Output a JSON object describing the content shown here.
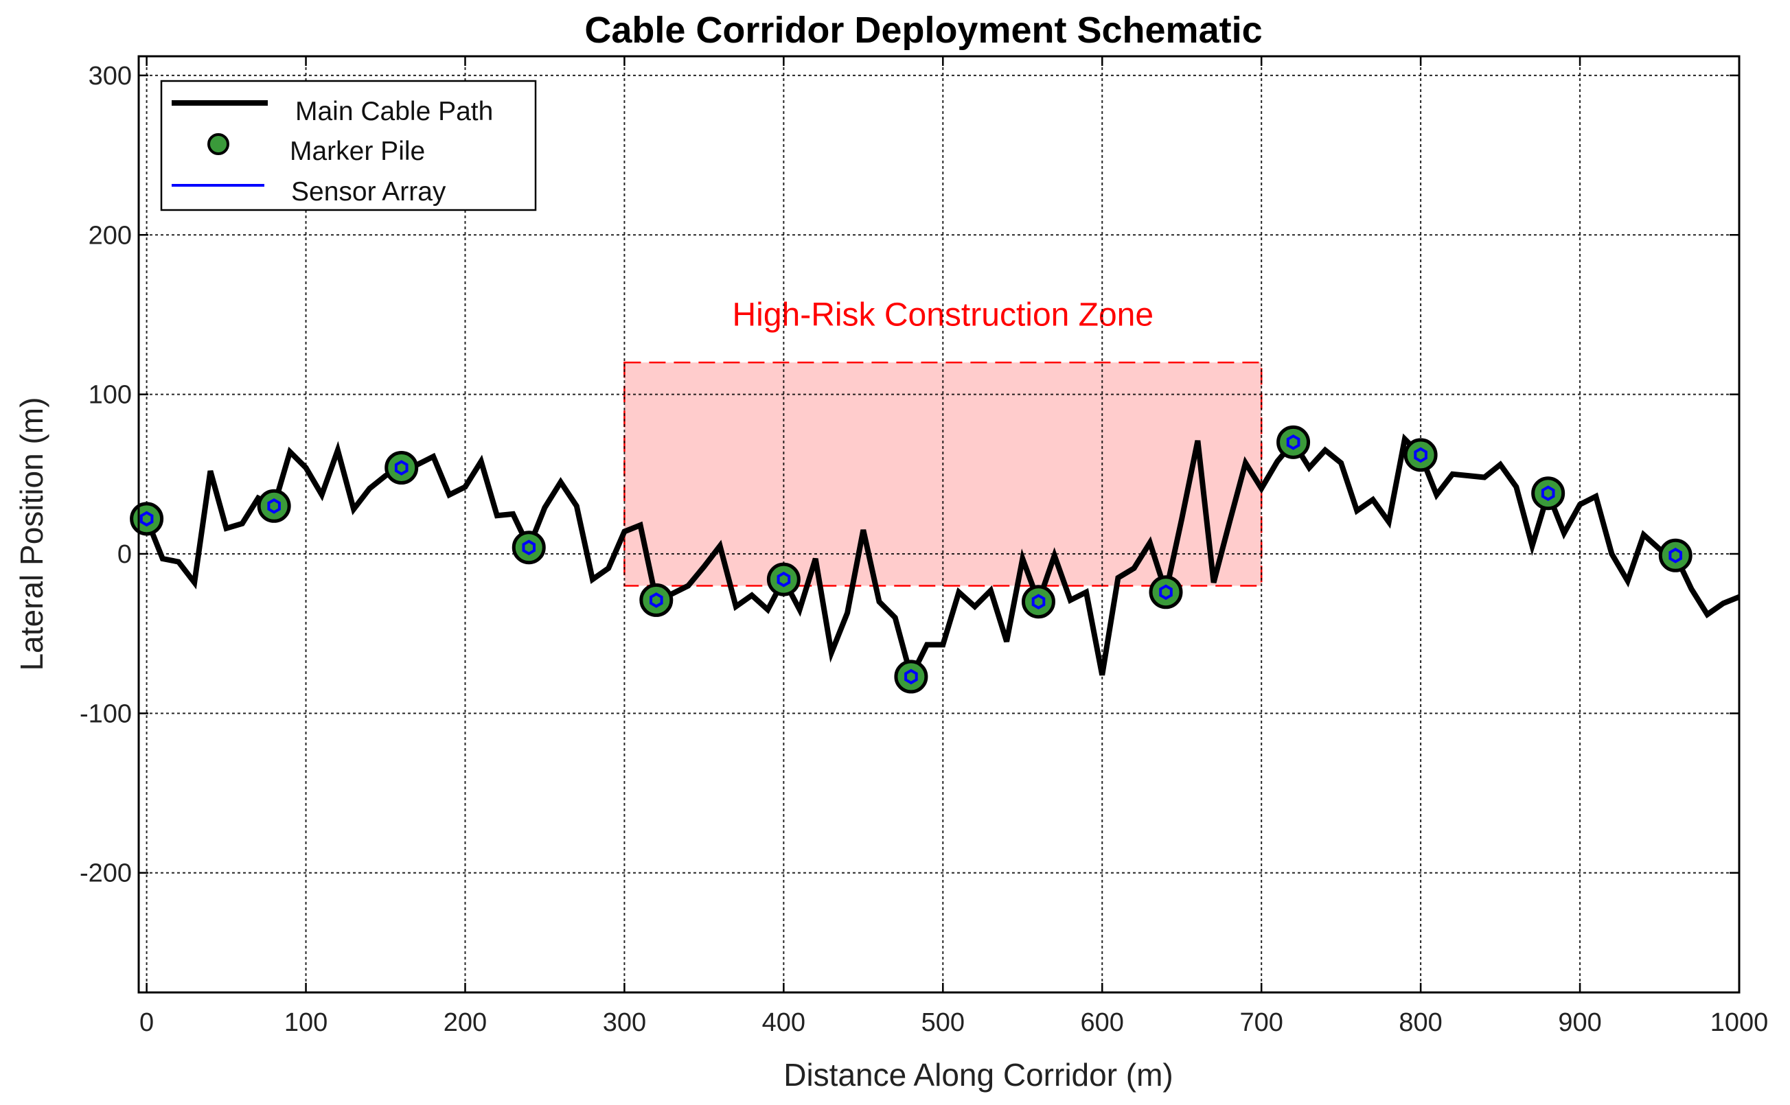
{
  "chart_data": {
    "type": "line",
    "title": "Cable Corridor Deployment Schematic",
    "xlabel": "Distance Along Corridor (m)",
    "ylabel": "Lateral Position (m)",
    "xlim": [
      -5,
      1000
    ],
    "ylim": [
      -275,
      312
    ],
    "xticks": [
      0,
      100,
      200,
      300,
      400,
      500,
      600,
      700,
      800,
      900,
      1000
    ],
    "yticks": [
      -200,
      -100,
      0,
      100,
      200,
      300
    ],
    "grid": true,
    "legend_position": "top-left",
    "colors": {
      "cable": "#000000",
      "marker_fill": "#3a9a3a",
      "marker_edge": "#000000",
      "sensor": "#0000ff",
      "zone_fill": "#ffcccc",
      "zone_edge": "#ff0000",
      "zone_text": "#ff0000"
    },
    "series": [
      {
        "name": "Main Cable Path",
        "x": [
          0,
          10,
          20,
          30,
          40,
          50,
          60,
          70,
          80,
          90,
          100,
          110,
          120,
          130,
          140,
          150,
          160,
          170,
          180,
          190,
          200,
          210,
          220,
          230,
          240,
          250,
          260,
          270,
          280,
          290,
          300,
          310,
          320,
          330,
          340,
          350,
          360,
          370,
          380,
          390,
          400,
          410,
          420,
          430,
          440,
          450,
          460,
          470,
          480,
          490,
          500,
          510,
          520,
          530,
          540,
          550,
          560,
          570,
          580,
          590,
          600,
          610,
          620,
          630,
          640,
          650,
          660,
          670,
          680,
          690,
          700,
          710,
          720,
          730,
          740,
          750,
          760,
          770,
          780,
          790,
          800,
          810,
          820,
          830,
          840,
          850,
          860,
          870,
          880,
          890,
          900,
          910,
          920,
          930,
          940,
          950,
          960,
          970,
          980,
          990,
          1000
        ],
        "y": [
          22,
          -3,
          -5,
          -18,
          52,
          16,
          19,
          35,
          30,
          64,
          54,
          37,
          65,
          28,
          41,
          49,
          54,
          56,
          61,
          37,
          42,
          58,
          24,
          25,
          4,
          29,
          45,
          30,
          -16,
          -9,
          14,
          18,
          -29,
          -25,
          -20,
          -8,
          5,
          -33,
          -26,
          -35,
          -16,
          -35,
          -3,
          -62,
          -37,
          15,
          -30,
          -40,
          -77,
          -57,
          -57,
          -24,
          -33,
          -23,
          -55,
          -3,
          -30,
          -1,
          -29,
          -24,
          -76,
          -15,
          -9,
          7,
          -24,
          22,
          71,
          -18,
          20,
          57,
          41,
          58,
          70,
          54,
          65,
          57,
          27,
          34,
          20,
          72,
          62,
          37,
          50,
          49,
          48,
          56,
          42,
          5,
          38,
          13,
          31,
          36,
          0,
          -17,
          12,
          3,
          -1,
          -22,
          -38,
          -31,
          -27
        ]
      },
      {
        "name": "Marker Pile",
        "x": [
          0,
          80,
          160,
          240,
          320,
          400,
          480,
          560,
          640,
          720,
          800,
          880,
          960
        ],
        "y": [
          22,
          30,
          54,
          4,
          -29,
          -16,
          -77,
          -30,
          -24,
          70,
          62,
          38,
          -1
        ]
      },
      {
        "name": "Sensor Array",
        "x": [
          0,
          80,
          160,
          240,
          320,
          400,
          480,
          560,
          640,
          720,
          800,
          880,
          960
        ],
        "y": [
          22,
          30,
          54,
          4,
          -29,
          -16,
          -77,
          -30,
          -24,
          70,
          62,
          38,
          -1
        ]
      }
    ],
    "annotations": [
      {
        "type": "region",
        "label": "High-Risk Construction Zone",
        "x_range": [
          300,
          700
        ],
        "y_range": [
          -20,
          120
        ],
        "label_x": 500,
        "label_y": 150
      }
    ]
  }
}
